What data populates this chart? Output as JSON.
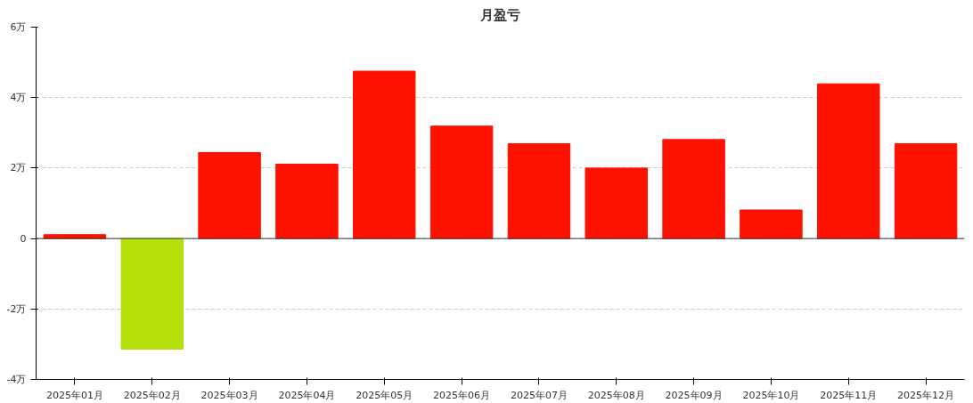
{
  "chart_data": {
    "type": "bar",
    "title": "月盈亏",
    "categories": [
      "2025年01月",
      "2025年02月",
      "2025年03月",
      "2025年04月",
      "2025年05月",
      "2025年06月",
      "2025年07月",
      "2025年08月",
      "2025年09月",
      "2025年10月",
      "2025年11月",
      "2025年12月"
    ],
    "values": [
      0.11,
      -3.14,
      2.44,
      2.11,
      4.75,
      3.19,
      2.69,
      2.0,
      2.81,
      0.81,
      4.39,
      2.69
    ],
    "colors": [
      "#ff1100",
      "#b3e00b",
      "#ff1100",
      "#ff1100",
      "#ff1100",
      "#ff1100",
      "#ff1100",
      "#ff1100",
      "#ff1100",
      "#ff1100",
      "#ff1100",
      "#ff1100"
    ],
    "ylim": [
      -4,
      6
    ],
    "yticks": [
      {
        "value": -4,
        "label": "-4万"
      },
      {
        "value": -2,
        "label": "-2万"
      },
      {
        "value": 0,
        "label": "0"
      },
      {
        "value": 2,
        "label": "2万"
      },
      {
        "value": 4,
        "label": "4万"
      },
      {
        "value": 6,
        "label": "6万"
      }
    ],
    "grid": "y"
  }
}
